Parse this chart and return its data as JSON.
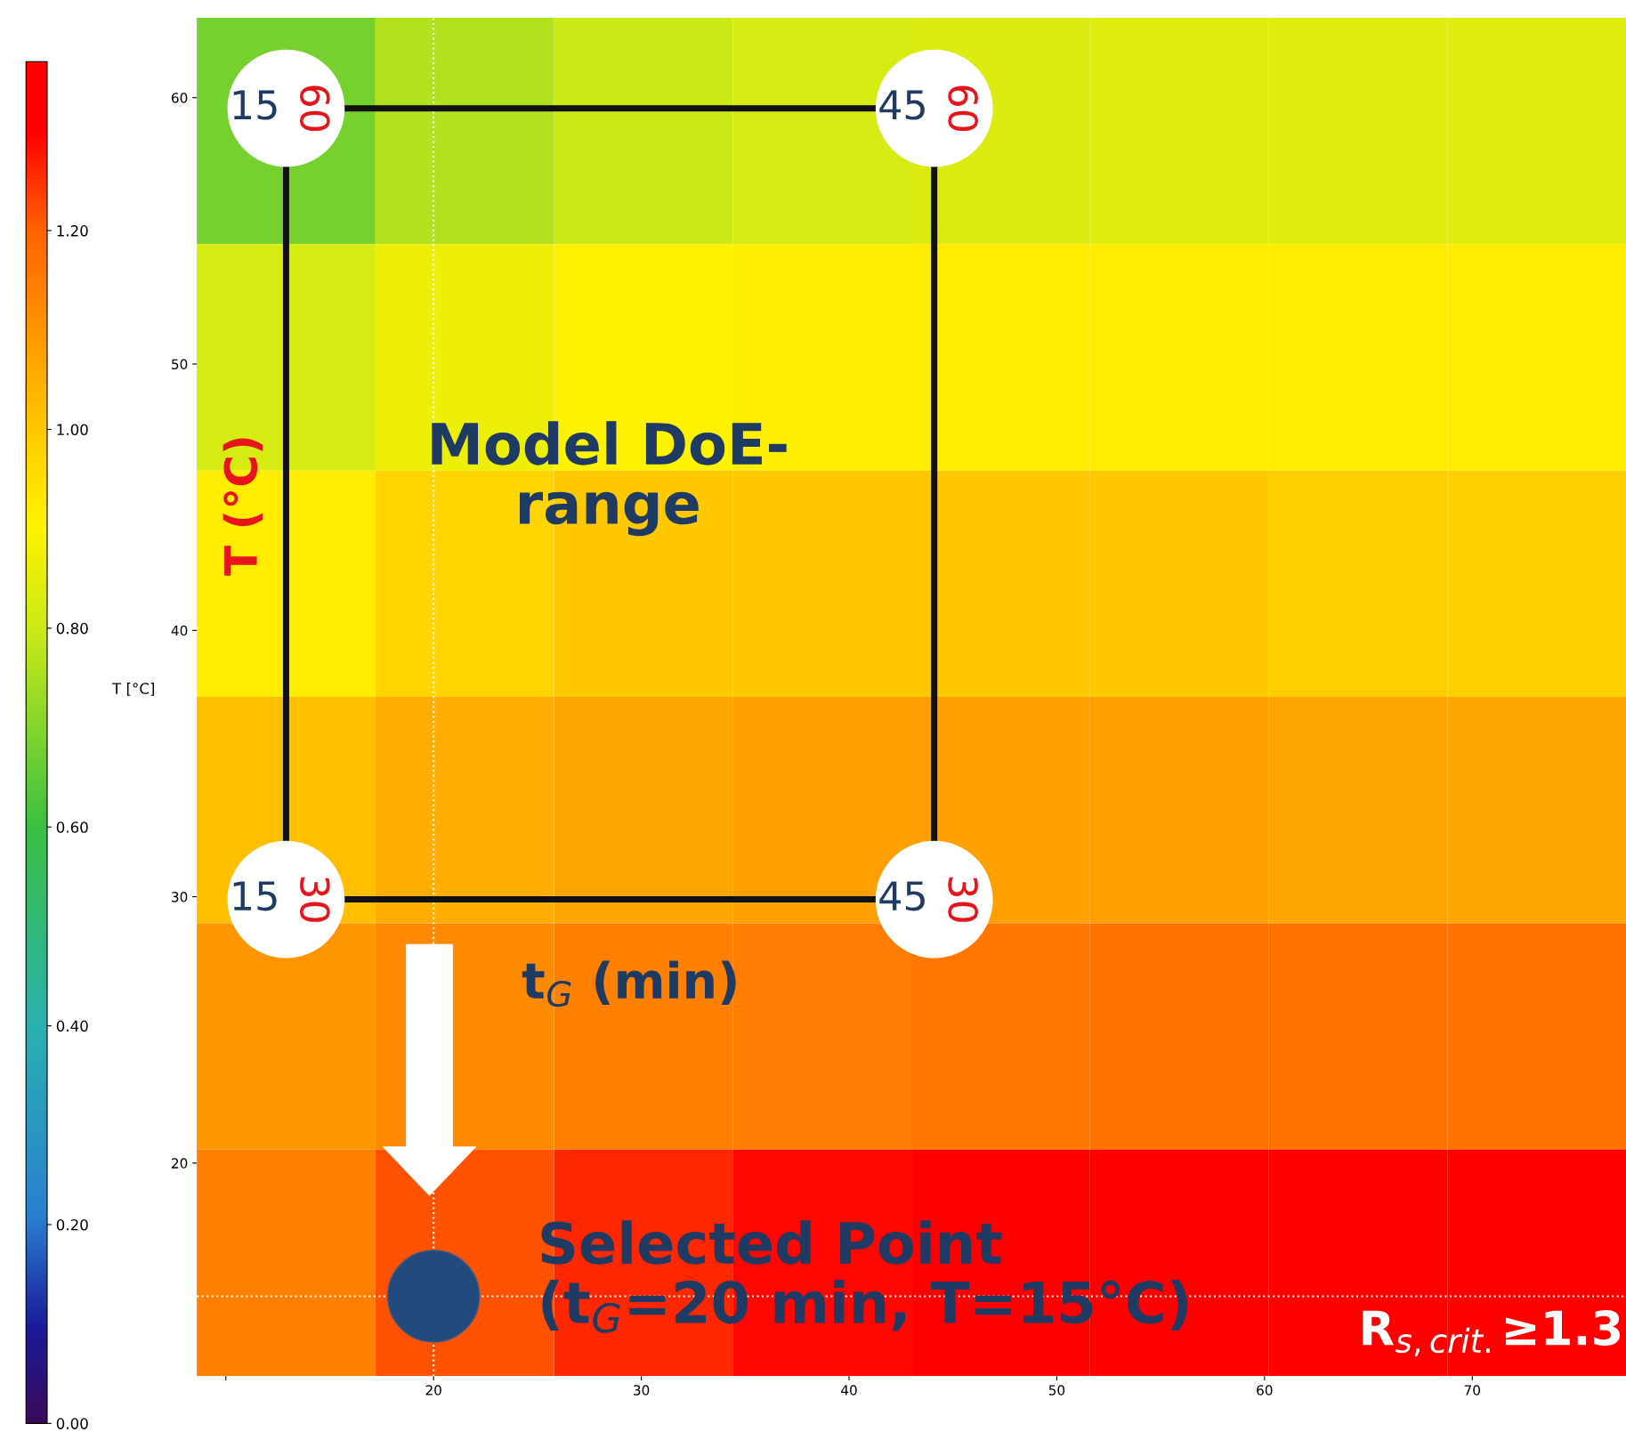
{
  "chart_data": {
    "type": "heatmap",
    "ylabel": "T [°C]",
    "x": [
      12.9,
      21.5,
      30.1,
      38.7,
      47.3,
      55.9,
      64.5,
      73.1
    ],
    "y": [
      58.75,
      50.25,
      41.75,
      33.25,
      24.75,
      16.25
    ],
    "cells": [
      [
        0.68,
        0.76,
        0.8,
        0.82,
        0.83,
        0.84,
        0.84,
        0.84
      ],
      [
        0.82,
        0.87,
        0.9,
        0.91,
        0.92,
        0.92,
        0.92,
        0.92
      ],
      [
        0.92,
        0.97,
        1.0,
        1.0,
        1.0,
        1.0,
        0.99,
        0.98
      ],
      [
        1.02,
        1.05,
        1.07,
        1.08,
        1.08,
        1.08,
        1.07,
        1.07
      ],
      [
        1.1,
        1.12,
        1.14,
        1.15,
        1.16,
        1.17,
        1.17,
        1.17
      ],
      [
        1.14,
        1.22,
        1.26,
        1.29,
        1.32,
        1.33,
        1.34,
        1.34
      ]
    ],
    "clim": [
      0,
      1.37
    ],
    "cticks": [
      {
        "value": 0,
        "label": "0.00"
      },
      {
        "value": 0.2,
        "label": "0.20"
      },
      {
        "value": 0.4,
        "label": "0.40"
      },
      {
        "value": 0.6,
        "label": "0.60"
      },
      {
        "value": 0.8,
        "label": "0.80"
      },
      {
        "value": 1.0,
        "label": "1.00"
      },
      {
        "value": 1.2,
        "label": "1.20"
      }
    ],
    "xlim": [
      8.6,
      77.4
    ],
    "ylim": [
      12,
      63
    ],
    "xticks": [
      {
        "value": 10,
        "label": null
      },
      20,
      30,
      40,
      50,
      60,
      70
    ],
    "yticks": [
      20,
      30,
      40,
      50,
      60
    ],
    "grid": false,
    "series": [
      {
        "type": "scatter",
        "color": "#ffffff",
        "x": [
          12.9,
          44.1,
          12.9,
          44.1
        ],
        "values": [
          59.6,
          59.6,
          29.9,
          29.9
        ]
      },
      {
        "type": "scatter",
        "color": "#234a7c",
        "x": [
          20
        ],
        "values": [
          15
        ]
      }
    ],
    "ref_lines": [
      {
        "axis": "x",
        "value": 20,
        "color": "#ffffff",
        "line_style": "dotted"
      },
      {
        "axis": "y",
        "value": 15,
        "color": "#ffffff",
        "line_style": "dotted"
      }
    ],
    "annotations": [
      "15",
      "60",
      "45",
      "60",
      "15",
      "30",
      "45",
      "30",
      "Model DoE-\nrange",
      "t$_{G}$ (min)",
      "T (°C)",
      "Selected Point\n(t$_{G}$=20 min, T=15°C)",
      "R$_{s,crit.}$≥1.3"
    ]
  }
}
